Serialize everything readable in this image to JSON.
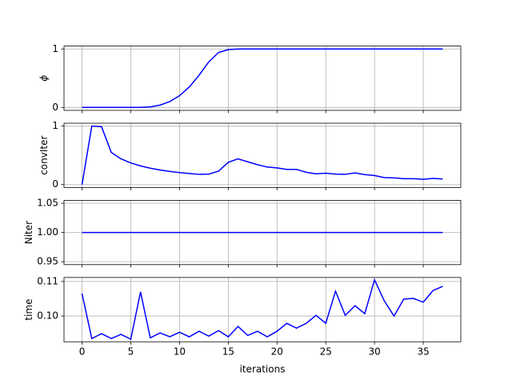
{
  "chart_data": [
    {
      "type": "line",
      "ylabel": "ϕ",
      "color": "#0000ff",
      "grid": true,
      "x": [
        0,
        1,
        2,
        3,
        4,
        5,
        6,
        7,
        8,
        9,
        10,
        11,
        12,
        13,
        14,
        15,
        16,
        17,
        18,
        19,
        20,
        21,
        22,
        23,
        24,
        25,
        26,
        27,
        28,
        29,
        30,
        31,
        32,
        33,
        34,
        35,
        36,
        37
      ],
      "values": [
        0,
        0,
        0,
        0,
        0,
        0,
        0,
        0.01,
        0.04,
        0.1,
        0.2,
        0.35,
        0.55,
        0.78,
        0.94,
        0.99,
        1.0,
        1.0,
        1.0,
        1.0,
        1.0,
        1.0,
        1.0,
        1.0,
        1.0,
        1.0,
        1.0,
        1.0,
        1.0,
        1.0,
        1.0,
        1.0,
        1.0,
        1.0,
        1.0,
        1.0,
        1.0,
        1.0
      ],
      "xlim": [
        -1.85,
        38.85
      ],
      "xticks": [
        0,
        5,
        10,
        15,
        20,
        25,
        30,
        35
      ],
      "ylim": [
        -0.05,
        1.05
      ],
      "yticks": [
        0,
        1
      ]
    },
    {
      "type": "line",
      "ylabel": "convIter",
      "color": "#0000ff",
      "grid": true,
      "x": [
        0,
        1,
        2,
        3,
        4,
        5,
        6,
        7,
        8,
        9,
        10,
        11,
        12,
        13,
        14,
        15,
        16,
        17,
        18,
        19,
        20,
        21,
        22,
        23,
        24,
        25,
        26,
        27,
        28,
        29,
        30,
        31,
        32,
        33,
        34,
        35,
        36,
        37
      ],
      "values": [
        0,
        1.0,
        0.99,
        0.55,
        0.44,
        0.37,
        0.32,
        0.28,
        0.25,
        0.225,
        0.205,
        0.19,
        0.175,
        0.18,
        0.23,
        0.38,
        0.44,
        0.39,
        0.34,
        0.3,
        0.285,
        0.26,
        0.26,
        0.21,
        0.185,
        0.195,
        0.18,
        0.175,
        0.2,
        0.17,
        0.155,
        0.12,
        0.115,
        0.1,
        0.1,
        0.09,
        0.105,
        0.095
      ],
      "xlim": [
        -1.85,
        38.85
      ],
      "xticks": [
        0,
        5,
        10,
        15,
        20,
        25,
        30,
        35
      ],
      "ylim": [
        -0.05,
        1.05
      ],
      "yticks": [
        0,
        1
      ]
    },
    {
      "type": "line",
      "ylabel": "Niter",
      "color": "#0000ff",
      "grid": true,
      "x": [
        0,
        1,
        2,
        3,
        4,
        5,
        6,
        7,
        8,
        9,
        10,
        11,
        12,
        13,
        14,
        15,
        16,
        17,
        18,
        19,
        20,
        21,
        22,
        23,
        24,
        25,
        26,
        27,
        28,
        29,
        30,
        31,
        32,
        33,
        34,
        35,
        36,
        37
      ],
      "values": [
        1,
        1,
        1,
        1,
        1,
        1,
        1,
        1,
        1,
        1,
        1,
        1,
        1,
        1,
        1,
        1,
        1,
        1,
        1,
        1,
        1,
        1,
        1,
        1,
        1,
        1,
        1,
        1,
        1,
        1,
        1,
        1,
        1,
        1,
        1,
        1,
        1,
        1
      ],
      "xlim": [
        -1.85,
        38.85
      ],
      "xticks": [
        0,
        5,
        10,
        15,
        20,
        25,
        30,
        35
      ],
      "ylim": [
        0.945,
        1.055
      ],
      "yticks": [
        0.95,
        {
          "value": 1,
          "label": "1.00"
        },
        1.05
      ]
    },
    {
      "type": "line",
      "ylabel": "time",
      "xlabel": "iterations",
      "color": "#0000ff",
      "grid": true,
      "x": [
        0,
        1,
        2,
        3,
        4,
        5,
        6,
        7,
        8,
        9,
        10,
        11,
        12,
        13,
        14,
        15,
        16,
        17,
        18,
        19,
        20,
        21,
        22,
        23,
        24,
        25,
        26,
        27,
        28,
        29,
        30,
        31,
        32,
        33,
        34,
        35,
        36,
        37
      ],
      "values": [
        0.1065,
        0.0935,
        0.0949,
        0.0935,
        0.0947,
        0.0933,
        0.107,
        0.0937,
        0.0951,
        0.094,
        0.0953,
        0.094,
        0.0956,
        0.0942,
        0.0958,
        0.094,
        0.097,
        0.0944,
        0.0956,
        0.094,
        0.0956,
        0.0979,
        0.0965,
        0.0979,
        0.1002,
        0.0979,
        0.1072,
        0.1002,
        0.103,
        0.1007,
        0.1105,
        0.1044,
        0.1,
        0.1049,
        0.1051,
        0.104,
        0.1074,
        0.1086
      ],
      "xlim": [
        -1.85,
        38.85
      ],
      "xticks": [
        0,
        5,
        10,
        15,
        20,
        25,
        30,
        35
      ],
      "ylim": [
        0.09256,
        0.11116
      ],
      "yticks": [
        {
          "value": 0.1,
          "label": "0.10"
        },
        0.11
      ],
      "xticklabels": true
    }
  ]
}
